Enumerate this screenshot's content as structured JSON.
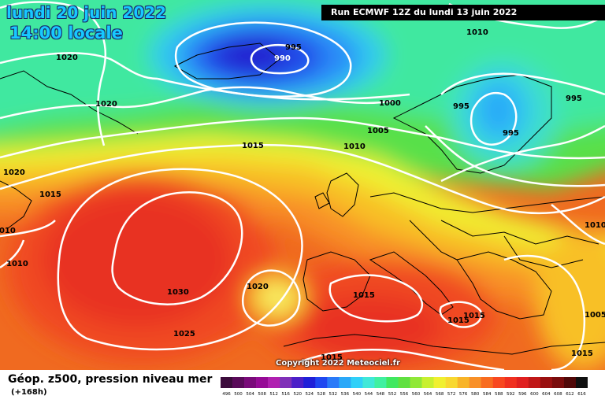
{
  "header": {
    "date": "lundi 20 juin 2022",
    "time": "14:00 locale",
    "run": "Run ECMWF 12Z du lundi 13 juin 2022"
  },
  "footer": {
    "title": "Géop. z500, pression niveau mer",
    "lead": "(+168h)",
    "copyright": "Copyright 2022 Meteociel.fr"
  },
  "colorbar": {
    "labels": [
      "496",
      "500",
      "504",
      "508",
      "512",
      "516",
      "520",
      "524",
      "528",
      "532",
      "536",
      "540",
      "544",
      "548",
      "552",
      "556",
      "560",
      "564",
      "568",
      "572",
      "576",
      "580",
      "584",
      "588",
      "592",
      "596",
      "600",
      "604",
      "608",
      "612",
      "616"
    ],
    "colors": [
      "#3c0c3c",
      "#5a0a5a",
      "#7a0a7a",
      "#960a96",
      "#b020b0",
      "#8030b8",
      "#4c20c8",
      "#2020d8",
      "#2048f0",
      "#2a7af8",
      "#2aa8f8",
      "#30d0f8",
      "#40e8d8",
      "#40f0a0",
      "#40e860",
      "#60e040",
      "#90e838",
      "#c8f030",
      "#f0f030",
      "#f8d830",
      "#f8b428",
      "#f89028",
      "#f86c20",
      "#f84820",
      "#f03020",
      "#e02020",
      "#c01818",
      "#9a1010",
      "#7a0c0c",
      "#500808",
      "#101010"
    ]
  },
  "isobars": [
    {
      "label": "1020"
    },
    {
      "label": "1020"
    },
    {
      "label": "1020"
    },
    {
      "label": "1015"
    },
    {
      "label": "1010"
    },
    {
      "label": "1010"
    },
    {
      "label": "995"
    },
    {
      "label": "990"
    },
    {
      "label": "1000"
    },
    {
      "label": "1005"
    },
    {
      "label": "1010"
    },
    {
      "label": "1015"
    },
    {
      "label": "995"
    },
    {
      "label": "995"
    },
    {
      "label": "995"
    },
    {
      "label": "1010"
    },
    {
      "label": "1030"
    },
    {
      "label": "1025"
    },
    {
      "label": "1020"
    },
    {
      "label": "1015"
    },
    {
      "label": "1015"
    },
    {
      "label": "1015"
    },
    {
      "label": "1015"
    },
    {
      "label": "1005"
    },
    {
      "label": "1010"
    },
    {
      "label": "1015"
    }
  ]
}
